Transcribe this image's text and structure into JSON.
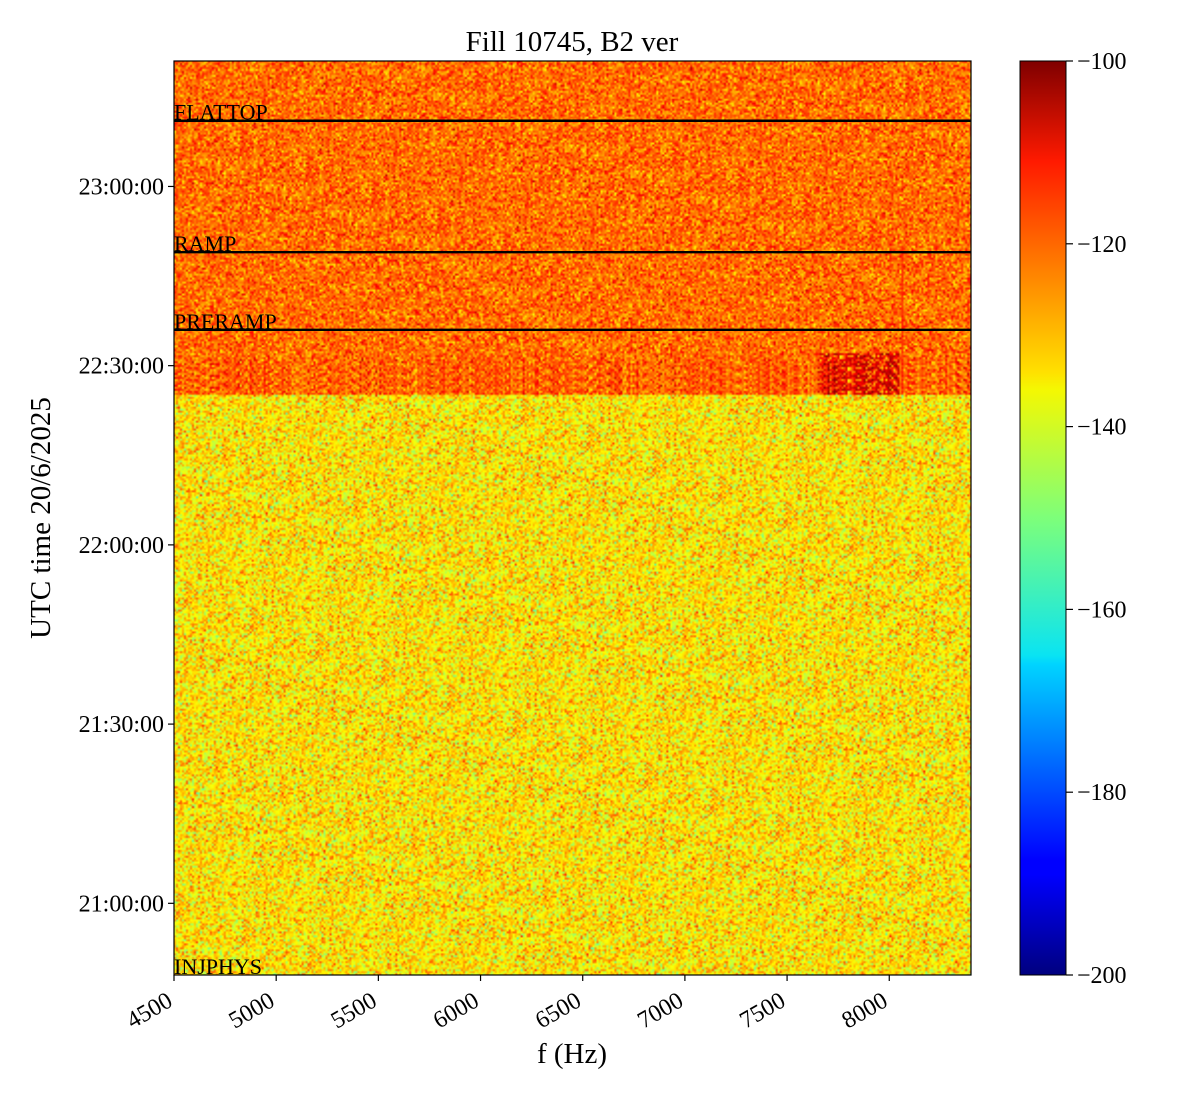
{
  "chart_data": {
    "type": "heatmap",
    "title": "Fill 10745, B2 ver",
    "xlabel": "f (Hz)",
    "ylabel": "UTC time 20/6/2025",
    "xlim": [
      4500,
      8400
    ],
    "ylim": [
      "20:48:00",
      "23:21:00"
    ],
    "x_ticks": [
      4500,
      5000,
      5500,
      6000,
      6500,
      7000,
      7500,
      8000
    ],
    "x_tick_labels": [
      "4500",
      "5000",
      "5500",
      "6000",
      "6500",
      "7000",
      "7500",
      "8000"
    ],
    "y_ticks": [
      "21:00:00",
      "21:30:00",
      "22:00:00",
      "22:30:00",
      "23:00:00"
    ],
    "y_tick_labels": [
      "21:00:00",
      "21:30:00",
      "22:00:00",
      "22:30:00",
      "23:00:00"
    ],
    "colormap": "jet",
    "colorbar": {
      "range": [
        -200,
        -100
      ],
      "ticks": [
        -100,
        -120,
        -140,
        -160,
        -180,
        -200
      ],
      "tick_labels": [
        "−100",
        "−120",
        "−140",
        "−160",
        "−180",
        "−200"
      ]
    },
    "regions": [
      {
        "from": "20:48:00",
        "to": "22:25:00",
        "mean_value": -135,
        "noise": 7
      },
      {
        "from": "22:25:00",
        "to": "22:31:00",
        "mean_value": -122,
        "noise": 6
      },
      {
        "from": "22:31:00",
        "to": "23:21:00",
        "mean_value": -123,
        "noise": 6
      }
    ],
    "hot_spot": {
      "f_from": 7650,
      "f_to": 8050,
      "t_from": "22:25:00",
      "t_to": "22:32:00",
      "mean_value": -108
    },
    "vertical_line": {
      "f": 8060,
      "t_from": "22:25:00",
      "t_to": "22:50:00"
    },
    "phase_markers": [
      {
        "label": "FLATTOP",
        "time": "23:11:00",
        "line": true
      },
      {
        "label": "RAMP",
        "time": "22:49:00",
        "line": true
      },
      {
        "label": "PRERAMP",
        "time": "22:36:00",
        "line": true
      },
      {
        "label": "INJPHYS",
        "time": "20:48:00",
        "line": false
      }
    ]
  }
}
